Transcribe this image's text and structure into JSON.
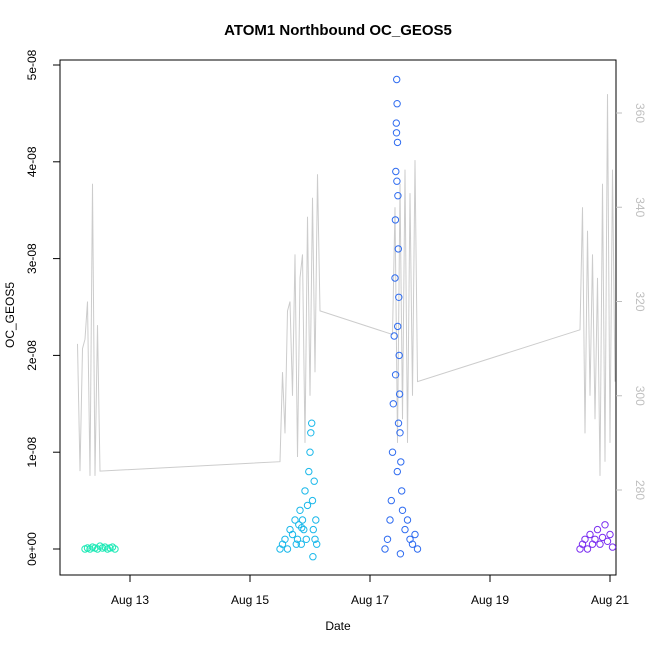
{
  "chart_data": {
    "type": "scatter",
    "title": "ATOM1 Northbound OC_GEOS5",
    "xlabel": "Date",
    "ylabel": "OC_GEOS5",
    "x_unit": "date",
    "xlim": [
      "2021-08-12T00:00",
      "2021-08-21T00:00"
    ],
    "x_ticks": [
      {
        "date": "2021-08-13",
        "label": "Aug 13"
      },
      {
        "date": "2021-08-15",
        "label": "Aug 15"
      },
      {
        "date": "2021-08-17",
        "label": "Aug 17"
      },
      {
        "date": "2021-08-19",
        "label": "Aug 19"
      },
      {
        "date": "2021-08-21",
        "label": "Aug 21"
      }
    ],
    "ylim": [
      0,
      5e-08
    ],
    "y_ticks": [
      {
        "value": 0,
        "label": "0e+00"
      },
      {
        "value": 1e-08,
        "label": "1e-08"
      },
      {
        "value": 2e-08,
        "label": "2e-08"
      },
      {
        "value": 3e-08,
        "label": "3e-08"
      },
      {
        "value": 4e-08,
        "label": "4e-08"
      },
      {
        "value": 5e-08,
        "label": "5e-08"
      }
    ],
    "y2_ticks": [
      280,
      300,
      320,
      340,
      360
    ],
    "y2_color": "#bfbfbf",
    "line_color": "#cccccc",
    "grid": false,
    "legend": "none",
    "scatter_series": [
      {
        "color": "#1de9b6",
        "points": [
          [
            "2021-08-12T06:00",
            0.0
          ],
          [
            "2021-08-12T07:00",
            1e-10
          ],
          [
            "2021-08-12T08:00",
            0.0
          ],
          [
            "2021-08-12T09:00",
            2e-10
          ],
          [
            "2021-08-12T10:00",
            1e-10
          ],
          [
            "2021-08-12T11:00",
            0.0
          ],
          [
            "2021-08-12T12:00",
            3e-10
          ],
          [
            "2021-08-12T13:00",
            1e-10
          ],
          [
            "2021-08-12T14:00",
            2e-10
          ],
          [
            "2021-08-12T15:00",
            0.0
          ],
          [
            "2021-08-12T16:00",
            1e-10
          ],
          [
            "2021-08-12T17:00",
            2e-10
          ],
          [
            "2021-08-12T18:00",
            0.0
          ]
        ]
      },
      {
        "color": "#1ab8ea",
        "points": [
          [
            "2021-08-15T12:00",
            0.0
          ],
          [
            "2021-08-15T13:00",
            5e-10
          ],
          [
            "2021-08-15T14:00",
            1e-09
          ],
          [
            "2021-08-15T15:00",
            0.0
          ],
          [
            "2021-08-15T16:00",
            2e-09
          ],
          [
            "2021-08-15T17:00",
            1.5e-09
          ],
          [
            "2021-08-15T18:00",
            3e-09
          ],
          [
            "2021-08-15T18:30",
            5e-10
          ],
          [
            "2021-08-15T19:00",
            1e-09
          ],
          [
            "2021-08-15T19:30",
            2.5e-09
          ],
          [
            "2021-08-15T20:00",
            4e-09
          ],
          [
            "2021-08-15T20:30",
            5e-10
          ],
          [
            "2021-08-15T21:00",
            3e-09
          ],
          [
            "2021-08-15T21:30",
            2e-09
          ],
          [
            "2021-08-15T22:00",
            6e-09
          ],
          [
            "2021-08-15T22:30",
            1e-09
          ],
          [
            "2021-08-15T23:00",
            4.5e-09
          ],
          [
            "2021-08-15T23:30",
            8e-09
          ],
          [
            "2021-08-16T00:00",
            1e-08
          ],
          [
            "2021-08-16T00:20",
            1.2e-08
          ],
          [
            "2021-08-16T00:40",
            1.3e-08
          ],
          [
            "2021-08-16T01:00",
            5e-09
          ],
          [
            "2021-08-16T01:20",
            2e-09
          ],
          [
            "2021-08-16T01:40",
            7e-09
          ],
          [
            "2021-08-16T02:00",
            1e-09
          ],
          [
            "2021-08-16T02:20",
            3e-09
          ],
          [
            "2021-08-16T02:40",
            5e-10
          ],
          [
            "2021-08-16T01:10",
            -8e-10
          ],
          [
            "2021-08-15T20:40",
            2.2e-09
          ]
        ]
      },
      {
        "color": "#2f6cf0",
        "points": [
          [
            "2021-08-17T06:00",
            0.0
          ],
          [
            "2021-08-17T07:00",
            1e-09
          ],
          [
            "2021-08-17T08:00",
            3e-09
          ],
          [
            "2021-08-17T08:30",
            5e-09
          ],
          [
            "2021-08-17T09:00",
            1e-08
          ],
          [
            "2021-08-17T09:20",
            1.5e-08
          ],
          [
            "2021-08-17T09:40",
            2.2e-08
          ],
          [
            "2021-08-17T10:00",
            2.8e-08
          ],
          [
            "2021-08-17T10:10",
            3.4e-08
          ],
          [
            "2021-08-17T10:20",
            3.9e-08
          ],
          [
            "2021-08-17T10:30",
            4.4e-08
          ],
          [
            "2021-08-17T10:40",
            4.85e-08
          ],
          [
            "2021-08-17T10:50",
            4.6e-08
          ],
          [
            "2021-08-17T11:00",
            4.2e-08
          ],
          [
            "2021-08-17T11:10",
            3.65e-08
          ],
          [
            "2021-08-17T11:20",
            3.1e-08
          ],
          [
            "2021-08-17T11:30",
            2.6e-08
          ],
          [
            "2021-08-17T11:40",
            2e-08
          ],
          [
            "2021-08-17T11:50",
            1.6e-08
          ],
          [
            "2021-08-17T12:00",
            1.2e-08
          ],
          [
            "2021-08-17T12:20",
            9e-09
          ],
          [
            "2021-08-17T12:40",
            6e-09
          ],
          [
            "2021-08-17T13:00",
            4e-09
          ],
          [
            "2021-08-17T14:00",
            2e-09
          ],
          [
            "2021-08-17T15:00",
            3e-09
          ],
          [
            "2021-08-17T16:00",
            1e-09
          ],
          [
            "2021-08-17T17:00",
            5e-10
          ],
          [
            "2021-08-17T18:00",
            1.5e-09
          ],
          [
            "2021-08-17T19:00",
            0.0
          ],
          [
            "2021-08-17T10:35",
            4.3e-08
          ],
          [
            "2021-08-17T10:45",
            3.8e-08
          ],
          [
            "2021-08-17T11:05",
            2.3e-08
          ],
          [
            "2021-08-17T10:15",
            1.8e-08
          ],
          [
            "2021-08-17T11:25",
            1.3e-08
          ],
          [
            "2021-08-17T10:55",
            8e-09
          ],
          [
            "2021-08-17T12:10",
            -5e-10
          ]
        ]
      },
      {
        "color": "#7b2ff0",
        "points": [
          [
            "2021-08-20T12:00",
            0.0
          ],
          [
            "2021-08-20T13:00",
            5e-10
          ],
          [
            "2021-08-20T14:00",
            1e-09
          ],
          [
            "2021-08-20T15:00",
            0.0
          ],
          [
            "2021-08-20T16:00",
            1.5e-09
          ],
          [
            "2021-08-20T17:00",
            5e-10
          ],
          [
            "2021-08-20T18:00",
            1e-09
          ],
          [
            "2021-08-20T19:00",
            2e-09
          ],
          [
            "2021-08-20T20:00",
            5e-10
          ],
          [
            "2021-08-20T21:00",
            1.2e-09
          ],
          [
            "2021-08-20T22:00",
            2.5e-09
          ],
          [
            "2021-08-20T23:00",
            8e-10
          ],
          [
            "2021-08-21T00:00",
            1.5e-09
          ],
          [
            "2021-08-21T01:00",
            2e-10
          ]
        ]
      }
    ],
    "line_series": {
      "axis": "right",
      "points": [
        [
          "2021-08-12T03:00",
          311
        ],
        [
          "2021-08-12T04:00",
          284
        ],
        [
          "2021-08-12T05:00",
          310
        ],
        [
          "2021-08-12T06:00",
          312
        ],
        [
          "2021-08-12T07:00",
          320
        ],
        [
          "2021-08-12T08:00",
          283
        ],
        [
          "2021-08-12T09:00",
          345
        ],
        [
          "2021-08-12T10:00",
          283
        ],
        [
          "2021-08-12T11:00",
          315
        ],
        [
          "2021-08-12T12:00",
          284
        ],
        [
          "2021-08-15T12:00",
          286
        ],
        [
          "2021-08-15T13:00",
          305
        ],
        [
          "2021-08-15T14:00",
          292
        ],
        [
          "2021-08-15T15:00",
          318
        ],
        [
          "2021-08-15T16:00",
          320
        ],
        [
          "2021-08-15T17:00",
          300
        ],
        [
          "2021-08-15T18:00",
          330
        ],
        [
          "2021-08-15T19:00",
          287
        ],
        [
          "2021-08-15T20:00",
          325
        ],
        [
          "2021-08-15T21:00",
          330
        ],
        [
          "2021-08-15T22:00",
          290
        ],
        [
          "2021-08-15T23:00",
          338
        ],
        [
          "2021-08-16T00:00",
          300
        ],
        [
          "2021-08-16T01:00",
          342
        ],
        [
          "2021-08-16T02:00",
          305
        ],
        [
          "2021-08-16T03:00",
          347
        ],
        [
          "2021-08-16T04:00",
          318
        ],
        [
          "2021-08-17T09:00",
          313
        ],
        [
          "2021-08-17T10:00",
          340
        ],
        [
          "2021-08-17T11:00",
          290
        ],
        [
          "2021-08-17T12:00",
          345
        ],
        [
          "2021-08-17T13:00",
          295
        ],
        [
          "2021-08-17T14:00",
          348
        ],
        [
          "2021-08-17T15:00",
          290
        ],
        [
          "2021-08-17T16:00",
          343
        ],
        [
          "2021-08-17T17:00",
          300
        ],
        [
          "2021-08-17T18:00",
          350
        ],
        [
          "2021-08-17T19:00",
          303
        ],
        [
          "2021-08-20T12:00",
          314
        ],
        [
          "2021-08-20T13:00",
          340
        ],
        [
          "2021-08-20T14:00",
          292
        ],
        [
          "2021-08-20T15:00",
          335
        ],
        [
          "2021-08-20T16:00",
          300
        ],
        [
          "2021-08-20T17:00",
          330
        ],
        [
          "2021-08-20T18:00",
          295
        ],
        [
          "2021-08-20T19:00",
          325
        ],
        [
          "2021-08-20T20:00",
          283
        ],
        [
          "2021-08-20T21:00",
          345
        ],
        [
          "2021-08-20T22:00",
          286
        ],
        [
          "2021-08-20T23:00",
          364
        ],
        [
          "2021-08-21T00:00",
          290
        ],
        [
          "2021-08-21T01:00",
          348
        ],
        [
          "2021-08-21T02:00",
          303
        ]
      ]
    }
  }
}
